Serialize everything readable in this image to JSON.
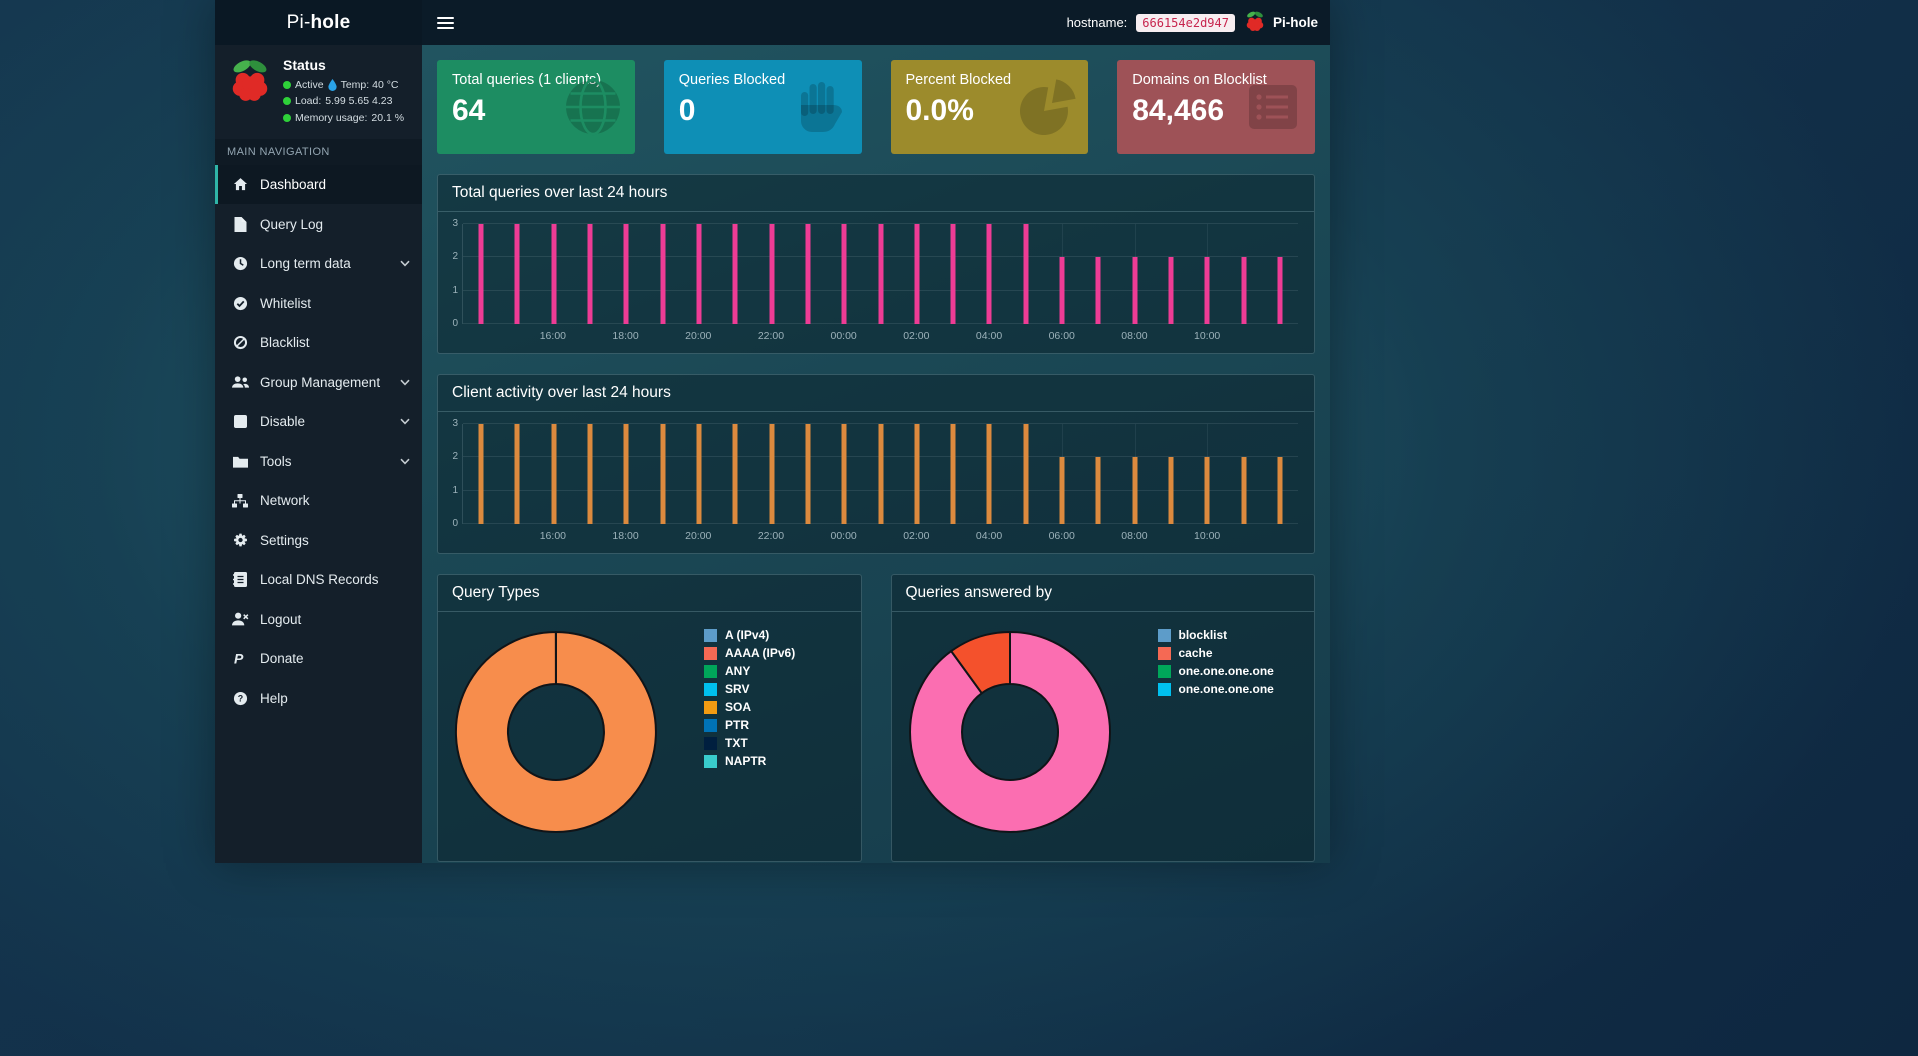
{
  "navbar": {
    "brand_prefix": "Pi-",
    "brand_bold": "hole",
    "hostname_label": "hostname:",
    "hostname_value": "666154e2d947",
    "user_label": "Pi-hole"
  },
  "sidebar": {
    "status": {
      "title": "Status",
      "rows": [
        {
          "text": "Active",
          "has_temp_icon": true,
          "text2": "Temp: 40 °C"
        },
        {
          "text": "Load:",
          "text2": "5.99  5.65  4.23"
        },
        {
          "text": "Memory usage:",
          "text2": "20.1 %"
        }
      ]
    },
    "section_label": "MAIN NAVIGATION",
    "items": [
      {
        "label": "Dashboard",
        "icon": "home-icon",
        "active": true
      },
      {
        "label": "Query Log",
        "icon": "file-icon"
      },
      {
        "label": "Long term data",
        "icon": "clock-icon",
        "chevron": true
      },
      {
        "label": "Whitelist",
        "icon": "check-circle-icon"
      },
      {
        "label": "Blacklist",
        "icon": "ban-icon"
      },
      {
        "label": "Group Management",
        "icon": "users-icon",
        "chevron": true
      },
      {
        "label": "Disable",
        "icon": "stop-icon",
        "chevron": true
      },
      {
        "label": "Tools",
        "icon": "folder-icon",
        "chevron": true
      },
      {
        "label": "Network",
        "icon": "network-icon"
      },
      {
        "label": "Settings",
        "icon": "gears-icon"
      },
      {
        "label": "Local DNS Records",
        "icon": "address-book-icon"
      },
      {
        "label": "Logout",
        "icon": "logout-icon"
      },
      {
        "label": "Donate",
        "icon": "donate-icon"
      },
      {
        "label": "Help",
        "icon": "help-icon"
      }
    ]
  },
  "cards": [
    {
      "title": "Total queries (1 clients)",
      "value": "64",
      "color": "#1d8d62",
      "icon": "globe-icon"
    },
    {
      "title": "Queries Blocked",
      "value": "0",
      "color": "#0e8fb6",
      "icon": "hand-icon"
    },
    {
      "title": "Percent Blocked",
      "value": "0.0%",
      "color": "#9c8b2c",
      "icon": "pie-chart-icon"
    },
    {
      "title": "Domains on Blocklist",
      "value": "84,466",
      "color": "#9e5257",
      "icon": "list-icon"
    }
  ],
  "chart_data": [
    {
      "id": "total_queries",
      "type": "bar",
      "title": "Total queries over last 24 hours",
      "bar_color": "#ee3c95",
      "ylim": [
        0,
        3
      ],
      "yticks": [
        0,
        1,
        2,
        3
      ],
      "grid": true,
      "legend_position": "none",
      "values": [
        3,
        3,
        3,
        3,
        3,
        3,
        3,
        3,
        3,
        3,
        3,
        3,
        3,
        3,
        3,
        3,
        2,
        2,
        2,
        2,
        2,
        2,
        2
      ],
      "xticks": [
        {
          "index": 2,
          "label": "16:00"
        },
        {
          "index": 4,
          "label": "18:00"
        },
        {
          "index": 6,
          "label": "20:00"
        },
        {
          "index": 8,
          "label": "22:00"
        },
        {
          "index": 10,
          "label": "00:00"
        },
        {
          "index": 12,
          "label": "02:00"
        },
        {
          "index": 14,
          "label": "04:00"
        },
        {
          "index": 16,
          "label": "06:00"
        },
        {
          "index": 18,
          "label": "08:00"
        },
        {
          "index": 20,
          "label": "10:00"
        }
      ]
    },
    {
      "id": "client_activity",
      "type": "bar",
      "title": "Client activity over last 24 hours",
      "bar_color": "#dc8a3e",
      "ylim": [
        0,
        3
      ],
      "yticks": [
        0,
        1,
        2,
        3
      ],
      "grid": true,
      "legend_position": "none",
      "values": [
        3,
        3,
        3,
        3,
        3,
        3,
        3,
        3,
        3,
        3,
        3,
        3,
        3,
        3,
        3,
        3,
        2,
        2,
        2,
        2,
        2,
        2,
        2
      ],
      "xticks": [
        {
          "index": 2,
          "label": "16:00"
        },
        {
          "index": 4,
          "label": "18:00"
        },
        {
          "index": 6,
          "label": "20:00"
        },
        {
          "index": 8,
          "label": "22:00"
        },
        {
          "index": 10,
          "label": "00:00"
        },
        {
          "index": 12,
          "label": "02:00"
        },
        {
          "index": 14,
          "label": "04:00"
        },
        {
          "index": 16,
          "label": "06:00"
        },
        {
          "index": 18,
          "label": "08:00"
        },
        {
          "index": 20,
          "label": "10:00"
        }
      ]
    },
    {
      "id": "query_types",
      "type": "pie",
      "title": "Query Types",
      "legend_position": "right",
      "slices": [
        {
          "value": 100,
          "color": "#f78d4c"
        }
      ],
      "legend": [
        {
          "label": "A (IPv4)",
          "color": "#5d9cc9"
        },
        {
          "label": "AAAA (IPv6)",
          "color": "#f56954"
        },
        {
          "label": "ANY",
          "color": "#00a65a"
        },
        {
          "label": "SRV",
          "color": "#00c0ef"
        },
        {
          "label": "SOA",
          "color": "#f39c12"
        },
        {
          "label": "PTR",
          "color": "#0073b7"
        },
        {
          "label": "TXT",
          "color": "#001f3f"
        },
        {
          "label": "NAPTR",
          "color": "#39cccc"
        }
      ]
    },
    {
      "id": "queries_answered_by",
      "type": "pie",
      "title": "Queries answered by",
      "legend_position": "right",
      "slices": [
        {
          "value": 90,
          "color": "#fb6eb1"
        },
        {
          "value": 10,
          "color": "#f4512c"
        }
      ],
      "legend": [
        {
          "label": "blocklist",
          "color": "#5d9cc9"
        },
        {
          "label": "cache",
          "color": "#f56954"
        },
        {
          "label": "one.one.one.one",
          "color": "#00a65a"
        },
        {
          "label": "one.one.one.one",
          "color": "#00c0ef"
        }
      ]
    }
  ]
}
